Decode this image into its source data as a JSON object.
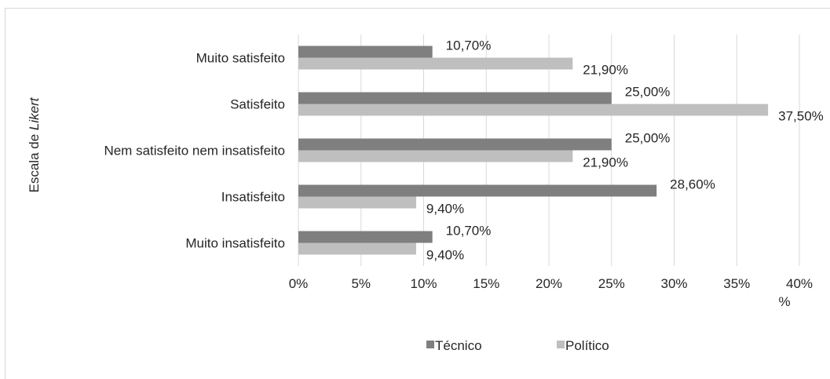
{
  "chart_data": {
    "type": "bar",
    "orientation": "horizontal",
    "categories": [
      "Muito satisfeito",
      "Satisfeito",
      "Nem satisfeito nem insatisfeito",
      "Insatisfeito",
      "Muito insatisfeito"
    ],
    "series": [
      {
        "name": "Técnico",
        "values": [
          10.7,
          25.0,
          25.0,
          28.6,
          10.7
        ],
        "labels": [
          "10,70%",
          "25,00%",
          "25,00%",
          "28,60%",
          "10,70%"
        ],
        "color": "#7f7f7f"
      },
      {
        "name": "Político",
        "values": [
          21.9,
          37.5,
          21.9,
          9.4,
          9.4
        ],
        "labels": [
          "21,90%",
          "37,50%",
          "21,90%",
          "9,40%",
          "9,40%"
        ],
        "color": "#bfbfbf"
      }
    ],
    "ylabel": {
      "prefix": "Escala de ",
      "emphasis": "Likert"
    },
    "xlim": [
      0,
      40
    ],
    "xticks": [
      0,
      5,
      10,
      15,
      20,
      25,
      30,
      35,
      40
    ],
    "xtick_labels": [
      "0%",
      "5%",
      "10%",
      "15%",
      "20%",
      "25%",
      "30%",
      "35%",
      "40%"
    ],
    "xtick_overflow": "%",
    "grid": "vertical",
    "legend_position": "bottom"
  }
}
